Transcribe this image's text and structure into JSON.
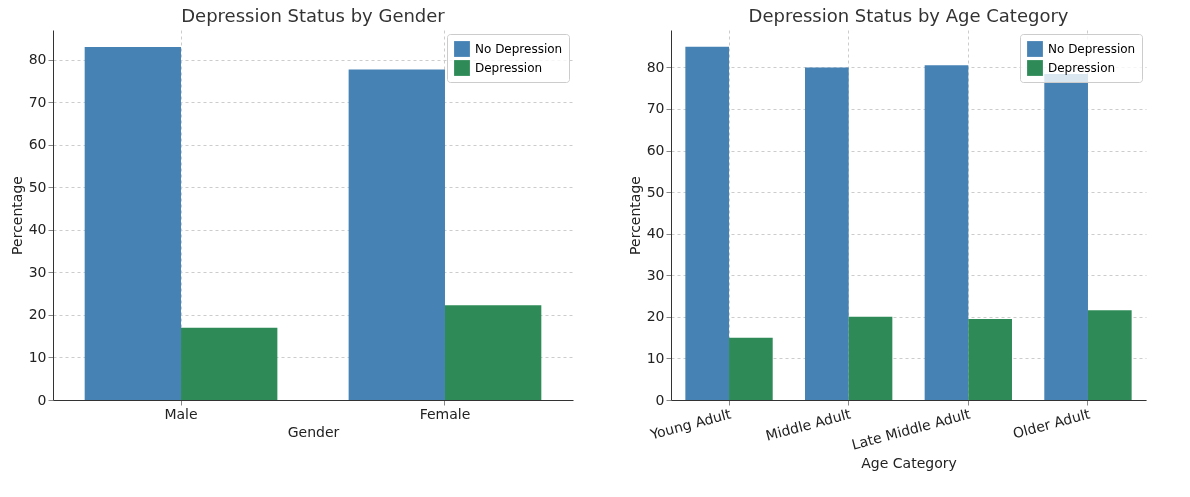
{
  "chart_data": [
    {
      "type": "bar",
      "title": "Depression Status by Gender",
      "xlabel": "Gender",
      "ylabel": "Percentage",
      "categories": [
        "Male",
        "Female"
      ],
      "series": [
        {
          "name": "No Depression",
          "color": "#4682b4",
          "values": [
            83,
            77.7
          ]
        },
        {
          "name": "Depression",
          "color": "#2e8b57",
          "values": [
            17,
            22.3
          ]
        }
      ],
      "ylim": [
        0,
        87
      ],
      "yticks": [
        0,
        10,
        20,
        30,
        40,
        50,
        60,
        70,
        80
      ],
      "grid": true,
      "legend": "top right"
    },
    {
      "type": "bar",
      "title": "Depression Status by Age Category",
      "xlabel": "Age Category",
      "ylabel": "Percentage",
      "categories": [
        "Young Adult",
        "Middle Adult",
        "Late Middle Adult",
        "Older Adult"
      ],
      "series": [
        {
          "name": "No Depression",
          "color": "#4682b4",
          "values": [
            85,
            80,
            80.5,
            78.4
          ]
        },
        {
          "name": "Depression",
          "color": "#2e8b57",
          "values": [
            15,
            20,
            19.5,
            21.6
          ]
        }
      ],
      "ylim": [
        0,
        89
      ],
      "yticks": [
        0,
        10,
        20,
        30,
        40,
        50,
        60,
        70,
        80
      ],
      "grid": true,
      "legend": "top right"
    }
  ]
}
